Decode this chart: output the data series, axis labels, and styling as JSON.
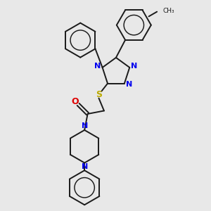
{
  "bg_color": "#e8e8e8",
  "bond_color": "#1a1a1a",
  "N_color": "#0000ee",
  "S_color": "#bbaa00",
  "O_color": "#dd0000",
  "bond_lw": 1.4,
  "fig_w": 3.0,
  "fig_h": 3.0,
  "dpi": 100,
  "xlim": [
    0,
    10
  ],
  "ylim": [
    0,
    10
  ]
}
